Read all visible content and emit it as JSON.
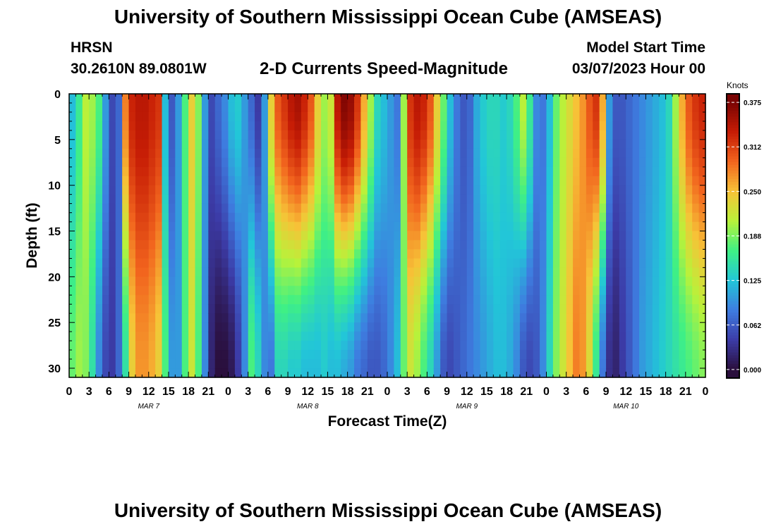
{
  "header": {
    "title": "University of Southern Mississippi Ocean Cube (AMSEAS)",
    "station": "HRSN",
    "coordinates": "30.2610N  89.0801W",
    "chart_title": "2-D Currents Speed-Magnitude",
    "model_label": "Model Start Time",
    "model_value": "03/07/2023 Hour 00"
  },
  "footer": {
    "title": "University of Southern Mississippi Ocean Cube (AMSEAS)"
  },
  "colorbar": {
    "units": "Knots",
    "ticks": [
      "0.375",
      "0.312",
      "0.250",
      "0.188",
      "0.125",
      "0.062",
      "0.000"
    ],
    "tick_values": [
      0.375,
      0.3125,
      0.25,
      0.1875,
      0.125,
      0.0625,
      0.0
    ],
    "range": [
      -0.012,
      0.387
    ]
  },
  "colors": {
    "stops": [
      "#2a0f3d",
      "#3c3ca8",
      "#3e7de0",
      "#22c6d8",
      "#3ff085",
      "#b8f23a",
      "#f7c237",
      "#f2651e",
      "#c61c05",
      "#7a0403"
    ]
  },
  "chart_data": {
    "type": "heatmap",
    "title": "2-D Currents Speed-Magnitude",
    "xlabel": "Forecast Time(Z)",
    "ylabel": "Depth (ft)",
    "x_range": [
      0,
      96
    ],
    "y_range": [
      0,
      31
    ],
    "x_tick_labels": [
      "0",
      "3",
      "6",
      "9",
      "12",
      "15",
      "18",
      "21",
      "0",
      "3",
      "6",
      "9",
      "12",
      "15",
      "18",
      "21",
      "0",
      "3",
      "6",
      "9",
      "12",
      "15",
      "18",
      "21",
      "0",
      "3",
      "6",
      "9",
      "12",
      "15",
      "18",
      "21",
      "0"
    ],
    "x_tick_values": [
      0,
      3,
      6,
      9,
      12,
      15,
      18,
      21,
      24,
      27,
      30,
      33,
      36,
      39,
      42,
      45,
      48,
      51,
      54,
      57,
      60,
      63,
      66,
      69,
      72,
      75,
      78,
      81,
      84,
      87,
      90,
      93,
      96
    ],
    "y_tick_labels": [
      "0",
      "5",
      "10",
      "15",
      "20",
      "25",
      "30"
    ],
    "y_tick_values": [
      0,
      5,
      10,
      15,
      20,
      25,
      30
    ],
    "day_labels": [
      {
        "label": "MAR 7",
        "hour": 12
      },
      {
        "label": "MAR 8",
        "hour": 36
      },
      {
        "label": "MAR 9",
        "hour": 60
      },
      {
        "label": "MAR 10",
        "hour": 84
      }
    ],
    "time_step_hours": 1,
    "depth_step_ft": 1,
    "value_units": "Knots",
    "value_range": [
      0.0,
      0.375
    ],
    "surface_speed_by_hour": [
      0.12,
      0.16,
      0.21,
      0.2,
      0.17,
      0.1,
      0.05,
      0.07,
      0.28,
      0.33,
      0.34,
      0.34,
      0.33,
      0.32,
      0.12,
      0.06,
      0.1,
      0.17,
      0.24,
      0.19,
      0.1,
      0.05,
      0.07,
      0.09,
      0.12,
      0.13,
      0.1,
      0.07,
      0.04,
      0.1,
      0.24,
      0.3,
      0.32,
      0.34,
      0.35,
      0.33,
      0.3,
      0.24,
      0.2,
      0.22,
      0.34,
      0.37,
      0.36,
      0.32,
      0.26,
      0.2,
      0.14,
      0.12,
      0.1,
      0.08,
      0.2,
      0.32,
      0.34,
      0.33,
      0.3,
      0.24,
      0.18,
      0.12,
      0.08,
      0.06,
      0.07,
      0.11,
      0.13,
      0.14,
      0.14,
      0.13,
      0.14,
      0.17,
      0.21,
      0.16,
      0.09,
      0.08,
      0.12,
      0.18,
      0.21,
      0.23,
      0.25,
      0.27,
      0.3,
      0.32,
      0.26,
      0.1,
      0.06,
      0.06,
      0.07,
      0.08,
      0.09,
      0.1,
      0.11,
      0.12,
      0.14,
      0.2,
      0.26,
      0.3,
      0.32,
      0.33,
      0.34
    ],
    "bottom_speed_by_hour": [
      0.18,
      0.2,
      0.19,
      0.15,
      0.09,
      0.05,
      0.04,
      0.07,
      0.15,
      0.24,
      0.27,
      0.27,
      0.26,
      0.24,
      0.17,
      0.1,
      0.1,
      0.17,
      0.22,
      0.17,
      0.09,
      0.02,
      0.0,
      0.0,
      0.01,
      0.04,
      0.09,
      0.17,
      0.14,
      0.09,
      0.08,
      0.14,
      0.14,
      0.13,
      0.13,
      0.12,
      0.12,
      0.12,
      0.13,
      0.12,
      0.12,
      0.11,
      0.1,
      0.08,
      0.07,
      0.06,
      0.06,
      0.07,
      0.09,
      0.12,
      0.18,
      0.22,
      0.2,
      0.17,
      0.14,
      0.1,
      0.06,
      0.05,
      0.06,
      0.07,
      0.08,
      0.09,
      0.1,
      0.11,
      0.12,
      0.12,
      0.11,
      0.09,
      0.06,
      0.05,
      0.06,
      0.09,
      0.14,
      0.19,
      0.22,
      0.25,
      0.28,
      0.27,
      0.23,
      0.16,
      0.08,
      0.03,
      0.02,
      0.04,
      0.06,
      0.08,
      0.1,
      0.11,
      0.12,
      0.13,
      0.14,
      0.15,
      0.16,
      0.17,
      0.18,
      0.19,
      0.2
    ]
  },
  "axis_labels": {
    "x": "Forecast Time(Z)",
    "y": "Depth (ft)"
  }
}
